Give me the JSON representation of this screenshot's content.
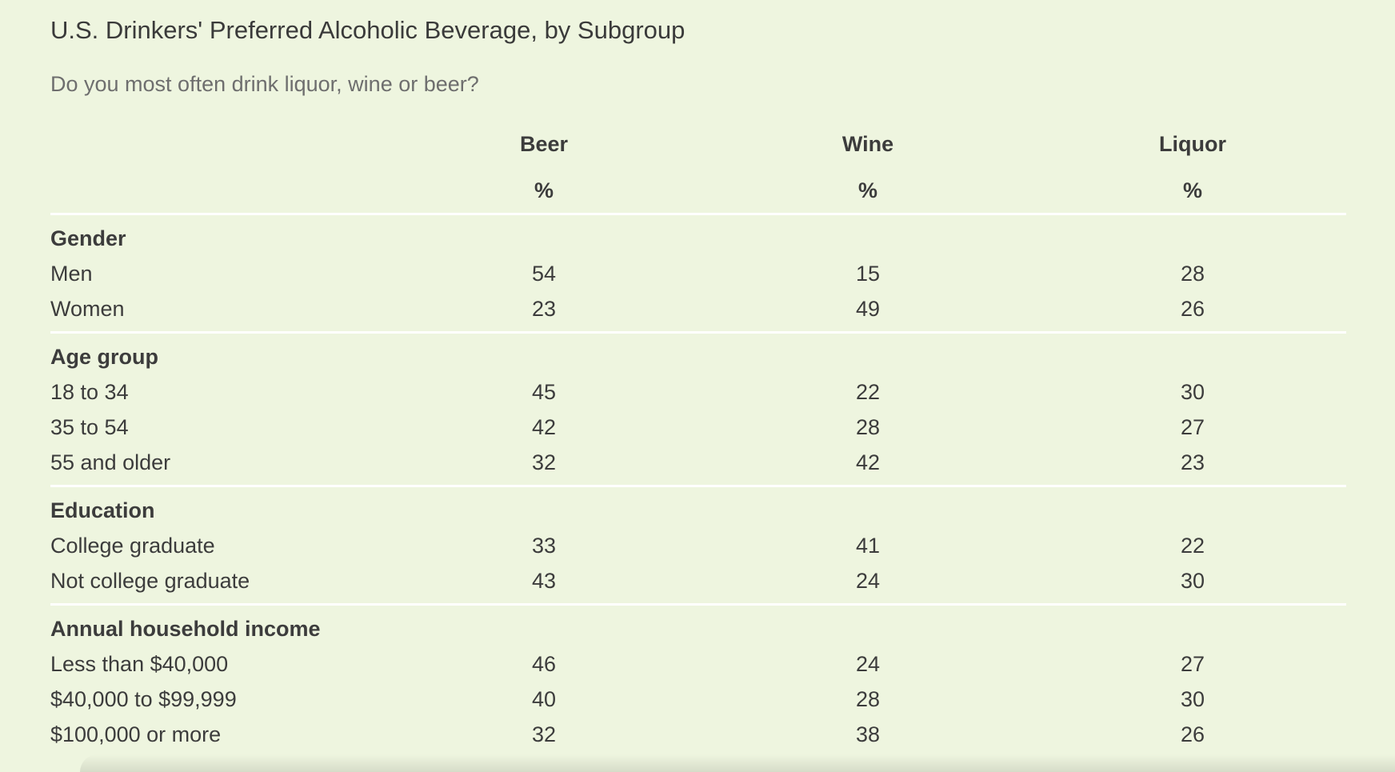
{
  "title": "U.S. Drinkers' Preferred Alcoholic Beverage, by Subgroup",
  "subtitle": "Do you most often drink liquor, wine or beer?",
  "columns": [
    {
      "label": "Beer",
      "unit": "%"
    },
    {
      "label": "Wine",
      "unit": "%"
    },
    {
      "label": "Liquor",
      "unit": "%"
    }
  ],
  "groups": [
    {
      "label": "Gender",
      "rows": [
        {
          "label": "Men",
          "values": [
            "54",
            "15",
            "28"
          ]
        },
        {
          "label": "Women",
          "values": [
            "23",
            "49",
            "26"
          ]
        }
      ]
    },
    {
      "label": "Age group",
      "rows": [
        {
          "label": "18 to 34",
          "values": [
            "45",
            "22",
            "30"
          ]
        },
        {
          "label": "35 to 54",
          "values": [
            "42",
            "28",
            "27"
          ]
        },
        {
          "label": "55 and older",
          "values": [
            "32",
            "42",
            "23"
          ]
        }
      ]
    },
    {
      "label": "Education",
      "rows": [
        {
          "label": "College graduate",
          "values": [
            "33",
            "41",
            "22"
          ]
        },
        {
          "label": "Not college graduate",
          "values": [
            "43",
            "24",
            "30"
          ]
        }
      ]
    },
    {
      "label": "Annual household income",
      "rows": [
        {
          "label": "Less than $40,000",
          "values": [
            "46",
            "24",
            "27"
          ]
        },
        {
          "label": "$40,000 to $99,999",
          "values": [
            "40",
            "28",
            "30"
          ]
        },
        {
          "label": "$100,000 or more",
          "values": [
            "32",
            "38",
            "26"
          ]
        }
      ]
    }
  ]
}
